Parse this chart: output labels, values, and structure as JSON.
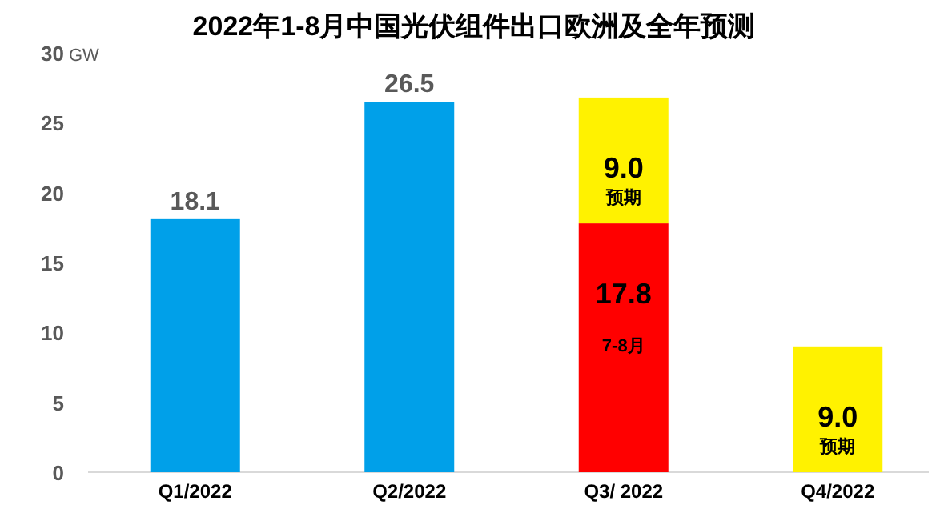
{
  "chart_data": {
    "type": "bar",
    "title": "2022年1-8月中国光伏组件出口欧洲及全年预测",
    "ylabel": "GW",
    "categories": [
      "Q1/2022",
      "Q2/2022",
      "Q3/ 2022",
      "Q4/2022"
    ],
    "stacked": true,
    "ylim": [
      0,
      30
    ],
    "yticks": [
      0,
      5,
      10,
      15,
      20,
      25,
      30
    ],
    "grid": false,
    "series": [
      {
        "color": "#00a0e9",
        "values": [
          18.1,
          26.5,
          null,
          null
        ],
        "value_labels": [
          "18.1",
          "26.5",
          null,
          null
        ]
      },
      {
        "color": "#ff0000",
        "values": [
          null,
          null,
          17.8,
          null
        ],
        "value_labels": [
          null,
          null,
          "17.8\n7-8月",
          null
        ]
      },
      {
        "color": "#fff200",
        "values": [
          null,
          null,
          9.0,
          9.0
        ],
        "value_labels": [
          null,
          null,
          "9.0\n预期",
          "9.0\n预期"
        ]
      }
    ]
  }
}
